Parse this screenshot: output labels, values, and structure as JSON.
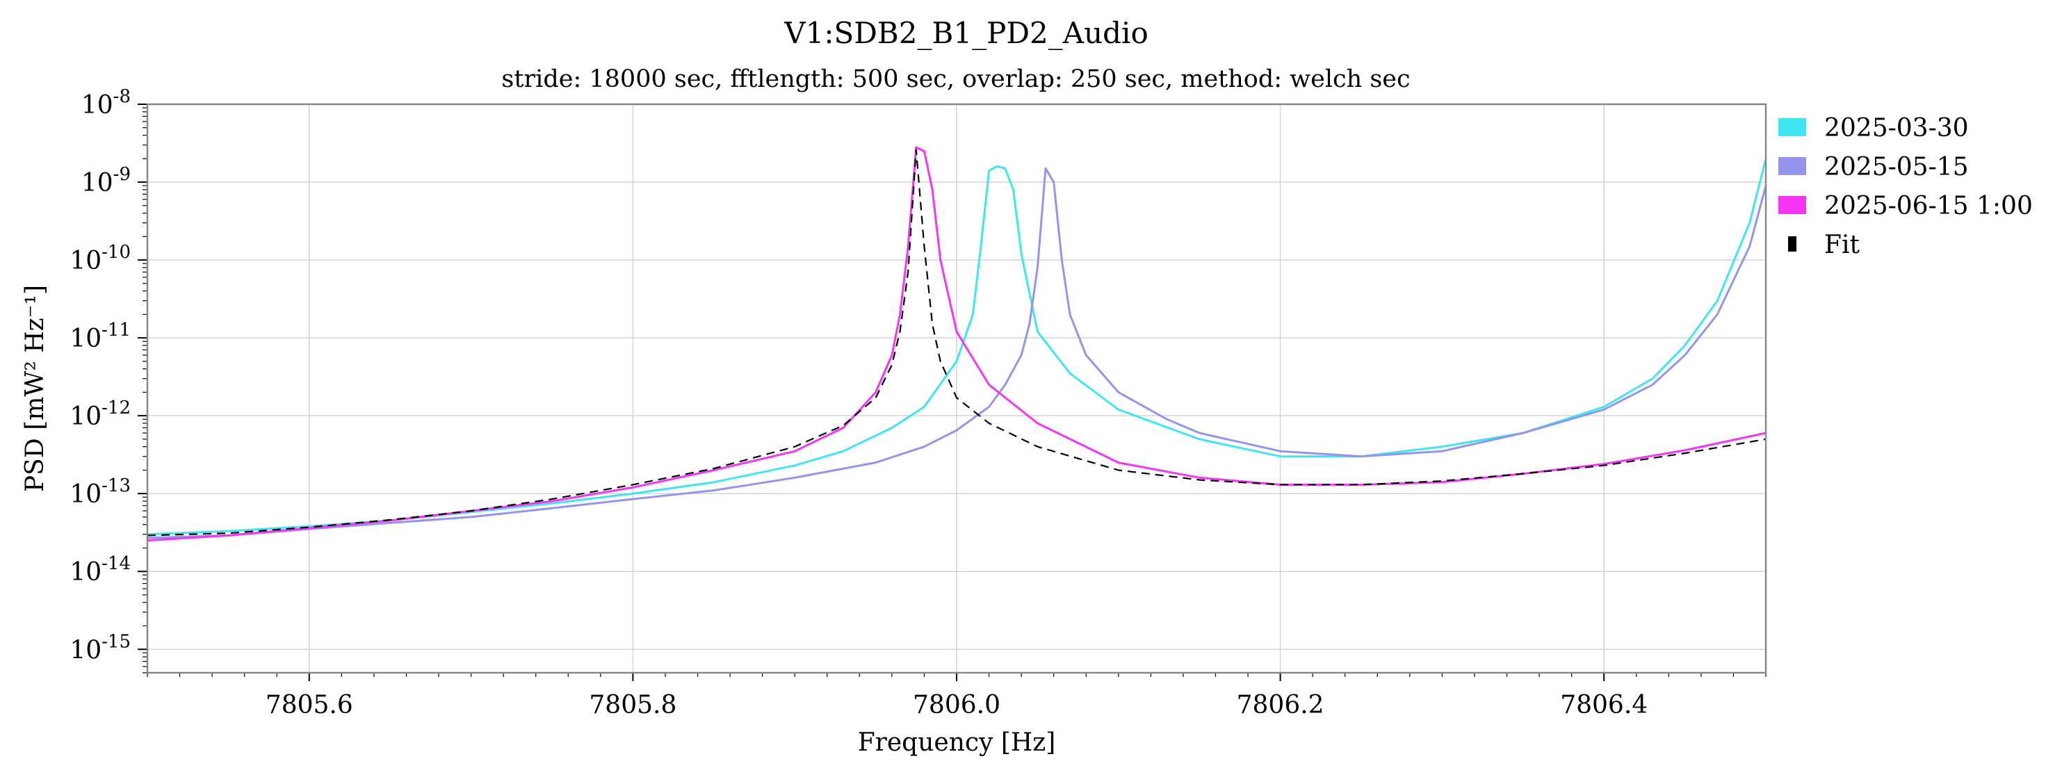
{
  "chart_data": {
    "type": "line",
    "title": "V1:SDB2_B1_PD2_Audio",
    "subtitle": "stride: 18000 sec, fftlength: 500 sec, overlap: 250 sec, method: welch sec",
    "xlabel": "Frequency [Hz]",
    "ylabel": "PSD [mW² Hz⁻¹]",
    "xlim": [
      7805.5,
      7806.5
    ],
    "ylim": [
      5e-16,
      1e-08
    ],
    "y_scale": "log",
    "grid": true,
    "legend_position": "outside-right",
    "x_ticks": [
      7805.6,
      7805.8,
      7806.0,
      7806.2,
      7806.4
    ],
    "x_tick_labels": [
      "7805.6",
      "7805.8",
      "7806.0",
      "7806.2",
      "7806.4"
    ],
    "y_ticks": [
      {
        "base": "10",
        "exp": "-8"
      },
      {
        "base": "10",
        "exp": "-9"
      },
      {
        "base": "10",
        "exp": "-10"
      },
      {
        "base": "10",
        "exp": "-11"
      },
      {
        "base": "10",
        "exp": "-12"
      },
      {
        "base": "10",
        "exp": "-13"
      },
      {
        "base": "10",
        "exp": "-14"
      },
      {
        "base": "10",
        "exp": "-15"
      }
    ],
    "series": [
      {
        "name": "2025-03-30",
        "color": "#3ee6f0",
        "style": "solid",
        "x": [
          7805.5,
          7805.55,
          7805.6,
          7805.65,
          7805.7,
          7805.75,
          7805.8,
          7805.85,
          7805.9,
          7805.93,
          7805.96,
          7805.98,
          7806.0,
          7806.01,
          7806.015,
          7806.02,
          7806.025,
          7806.03,
          7806.035,
          7806.04,
          7806.05,
          7806.07,
          7806.1,
          7806.15,
          7806.2,
          7806.25,
          7806.3,
          7806.35,
          7806.4,
          7806.43,
          7806.45,
          7806.47,
          7806.49,
          7806.5
        ],
        "y": [
          3e-14,
          3.3e-14,
          3.8e-14,
          4.5e-14,
          5.8e-14,
          7.5e-14,
          1e-13,
          1.4e-13,
          2.3e-13,
          3.5e-13,
          7e-13,
          1.3e-12,
          5e-12,
          2e-11,
          1.5e-10,
          1.4e-09,
          1.6e-09,
          1.5e-09,
          8e-10,
          1.2e-10,
          1.2e-11,
          3.5e-12,
          1.2e-12,
          5e-13,
          3e-13,
          3e-13,
          4e-13,
          6e-13,
          1.3e-12,
          3e-12,
          8e-12,
          3e-11,
          3e-10,
          2e-09
        ]
      },
      {
        "name": "2025-05-15",
        "color": "#9494ee",
        "style": "solid",
        "x": [
          7805.5,
          7805.55,
          7805.6,
          7805.65,
          7805.7,
          7805.75,
          7805.8,
          7805.85,
          7805.9,
          7805.95,
          7805.98,
          7806.0,
          7806.02,
          7806.03,
          7806.04,
          7806.045,
          7806.05,
          7806.055,
          7806.06,
          7806.065,
          7806.07,
          7806.08,
          7806.1,
          7806.13,
          7806.15,
          7806.2,
          7806.25,
          7806.3,
          7806.35,
          7806.4,
          7806.43,
          7806.45,
          7806.47,
          7806.49,
          7806.5
        ],
        "y": [
          2.7e-14,
          2.9e-14,
          3.5e-14,
          4.2e-14,
          5e-14,
          6.5e-14,
          8.5e-14,
          1.1e-13,
          1.6e-13,
          2.5e-13,
          4e-13,
          6.5e-13,
          1.3e-12,
          2.5e-12,
          6e-12,
          1.5e-11,
          8e-11,
          1.5e-09,
          1e-09,
          1e-10,
          2e-11,
          6e-12,
          2e-12,
          9e-13,
          6e-13,
          3.5e-13,
          3e-13,
          3.5e-13,
          6e-13,
          1.2e-12,
          2.5e-12,
          6e-12,
          2e-11,
          1.5e-10,
          9e-10
        ]
      },
      {
        "name": "2025-06-15 1:00",
        "color": "#f535f5",
        "style": "solid",
        "x": [
          7805.5,
          7805.55,
          7805.6,
          7805.65,
          7805.7,
          7805.75,
          7805.8,
          7805.85,
          7805.9,
          7805.93,
          7805.95,
          7805.96,
          7805.965,
          7805.97,
          7805.975,
          7805.98,
          7805.985,
          7805.99,
          7806.0,
          7806.02,
          7806.05,
          7806.1,
          7806.15,
          7806.2,
          7806.25,
          7806.3,
          7806.35,
          7806.4,
          7806.45,
          7806.5
        ],
        "y": [
          2.5e-14,
          2.9e-14,
          3.6e-14,
          4.5e-14,
          6e-14,
          8e-14,
          1.2e-13,
          2e-13,
          3.5e-13,
          7e-13,
          2e-12,
          6e-12,
          2e-11,
          1.5e-10,
          2.8e-09,
          2.5e-09,
          8e-10,
          1e-10,
          1.2e-11,
          2.5e-12,
          8e-13,
          2.5e-13,
          1.6e-13,
          1.3e-13,
          1.3e-13,
          1.4e-13,
          1.8e-13,
          2.4e-13,
          3.6e-13,
          6e-13
        ]
      },
      {
        "name": "Fit",
        "color": "#000000",
        "style": "dashed",
        "x": [
          7805.5,
          7805.55,
          7805.6,
          7805.65,
          7805.7,
          7805.75,
          7805.8,
          7805.85,
          7805.9,
          7805.93,
          7805.95,
          7805.96,
          7805.965,
          7805.97,
          7805.975,
          7805.98,
          7805.985,
          7805.99,
          7806.0,
          7806.02,
          7806.05,
          7806.1,
          7806.15,
          7806.2,
          7806.25,
          7806.3,
          7806.35,
          7806.4,
          7806.45,
          7806.5
        ],
        "y": [
          2.9e-14,
          3.1e-14,
          3.7e-14,
          4.6e-14,
          6e-14,
          8.5e-14,
          1.3e-13,
          2.1e-13,
          4e-13,
          7.5e-13,
          1.7e-12,
          4.5e-12,
          1.2e-11,
          7e-11,
          2.6e-09,
          1.5e-10,
          1.5e-11,
          5e-12,
          1.7e-12,
          8e-13,
          4e-13,
          2e-13,
          1.5e-13,
          1.3e-13,
          1.3e-13,
          1.45e-13,
          1.8e-13,
          2.3e-13,
          3.3e-13,
          5e-13
        ]
      }
    ]
  }
}
